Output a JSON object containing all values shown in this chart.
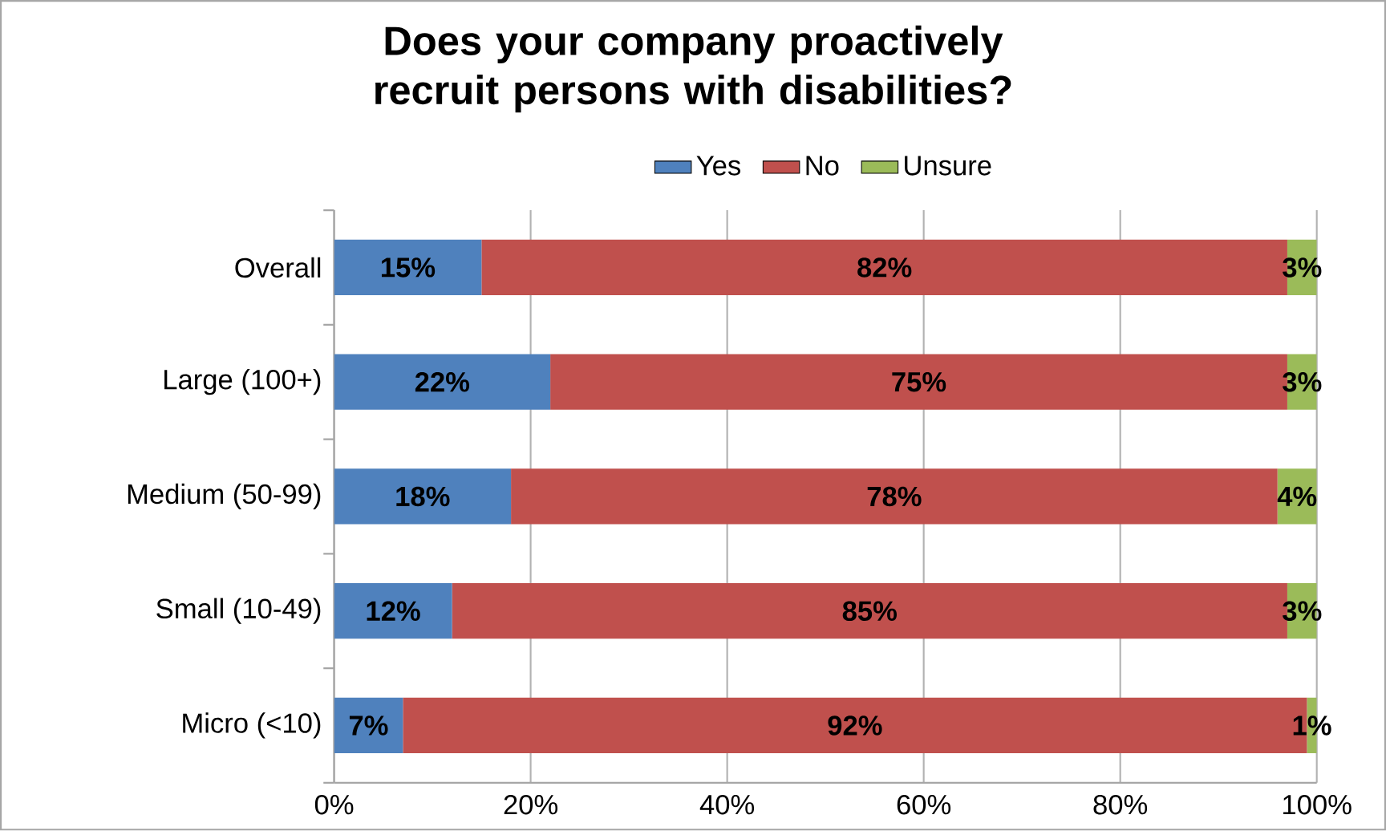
{
  "chart_data": {
    "type": "bar",
    "orientation": "horizontal",
    "stacked": true,
    "title": "Does your company proactively recruit persons with disabilities?",
    "categories": [
      "Overall",
      "Large (100+)",
      "Medium (50-99)",
      "Small (10-49)",
      "Micro (<10)"
    ],
    "series": [
      {
        "name": "Yes",
        "color": "#4f81bd",
        "values": [
          15,
          22,
          18,
          12,
          7
        ],
        "value_labels": [
          "15%",
          "22%",
          "18%",
          "12%",
          "7%"
        ]
      },
      {
        "name": "No",
        "color": "#c0504d",
        "values": [
          82,
          75,
          78,
          85,
          92
        ],
        "value_labels": [
          "82%",
          "75%",
          "78%",
          "85%",
          "92%"
        ]
      },
      {
        "name": "Unsure",
        "color": "#9bbb59",
        "values": [
          3,
          3,
          4,
          3,
          1
        ],
        "value_labels": [
          "3%",
          "3%",
          "4%",
          "3%",
          "1%"
        ]
      }
    ],
    "xlim": [
      0,
      100
    ],
    "xticks": [
      {
        "value": 0,
        "label": "0%"
      },
      {
        "value": 20,
        "label": "20%"
      },
      {
        "value": 40,
        "label": "40%"
      },
      {
        "value": 60,
        "label": "60%"
      },
      {
        "value": 80,
        "label": "80%"
      },
      {
        "value": 100,
        "label": "100%"
      }
    ],
    "grid": "x",
    "legend": "top"
  }
}
